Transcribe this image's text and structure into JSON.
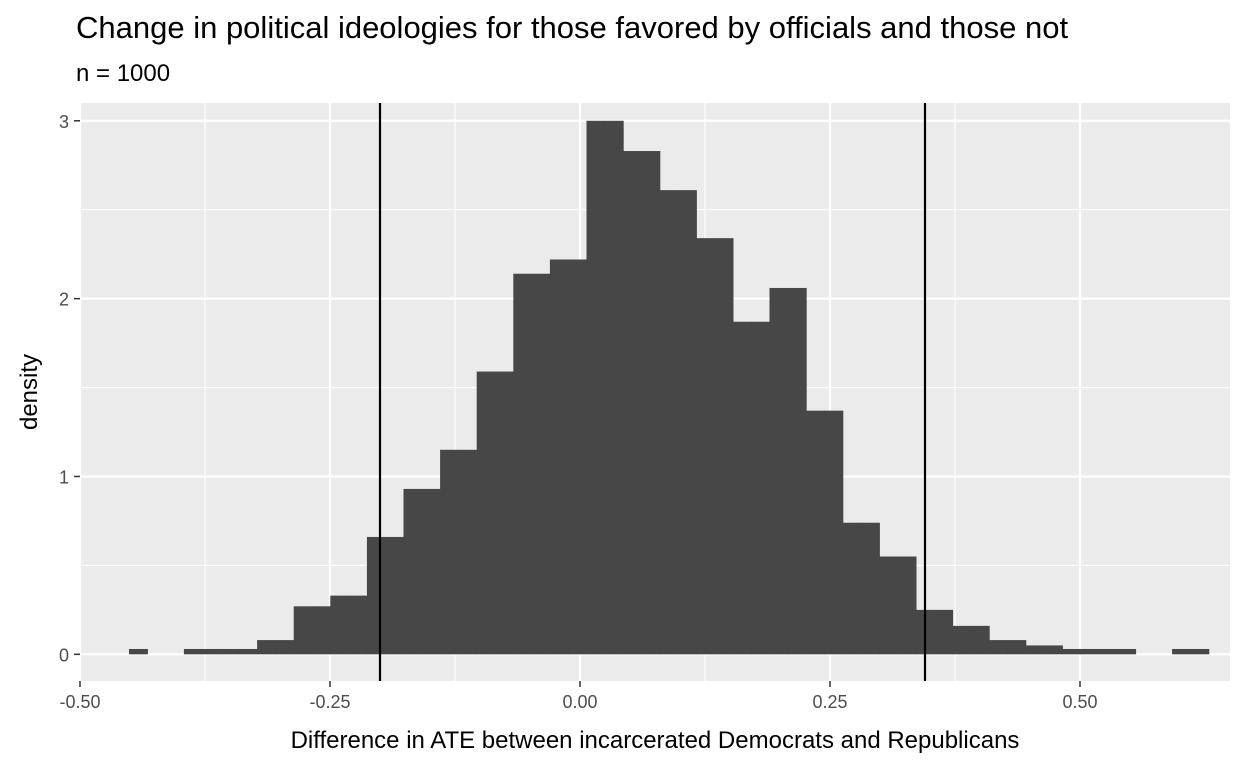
{
  "chart_data": {
    "type": "bar",
    "title": "Change in political ideologies for those favored by officials and those not",
    "subtitle": "n = 1000",
    "xlabel": "Difference in ATE between incarcerated Democrats and Republicans",
    "ylabel": "density",
    "xlim": [
      -0.5,
      0.65
    ],
    "ylim": [
      -0.15,
      3.1
    ],
    "x_ticks": [
      -0.5,
      -0.25,
      0.0,
      0.25,
      0.5
    ],
    "x_tick_labels": [
      "-0.50",
      "-0.25",
      "0.00",
      "0.25",
      "0.50"
    ],
    "y_ticks": [
      0,
      1,
      2,
      3
    ],
    "y_tick_labels": [
      "0",
      "1",
      "2",
      "3"
    ],
    "grid": true,
    "background": "#ebebeb",
    "bar_color": "#474747",
    "bins": [
      {
        "x0": -0.451,
        "x1": -0.4327,
        "density": 0.03
      },
      {
        "x0": -0.4327,
        "x1": -0.4144,
        "density": 0
      },
      {
        "x0": -0.4144,
        "x1": -0.3961,
        "density": 0
      },
      {
        "x0": -0.3961,
        "x1": -0.3778,
        "density": 0.03
      },
      {
        "x0": -0.3778,
        "x1": -0.3595,
        "density": 0.03
      },
      {
        "x0": -0.3595,
        "x1": -0.3412,
        "density": 0.03
      },
      {
        "x0": -0.3412,
        "x1": -0.3229,
        "density": 0.03
      },
      {
        "x0": -0.3229,
        "x1": -0.3046,
        "density": 0.08
      },
      {
        "x0": -0.3046,
        "x1": -0.2863,
        "density": 0.08
      },
      {
        "x0": -0.2863,
        "x1": -0.268,
        "density": 0.27
      },
      {
        "x0": -0.268,
        "x1": -0.2497,
        "density": 0.27
      },
      {
        "x0": -0.2497,
        "x1": -0.2314,
        "density": 0.33
      },
      {
        "x0": -0.2314,
        "x1": -0.2131,
        "density": 0.33
      },
      {
        "x0": -0.2131,
        "x1": -0.1948,
        "density": 0.66
      },
      {
        "x0": -0.1948,
        "x1": -0.1765,
        "density": 0.66
      },
      {
        "x0": -0.1765,
        "x1": -0.1582,
        "density": 0.93
      },
      {
        "x0": -0.1582,
        "x1": -0.1399,
        "density": 0.93
      },
      {
        "x0": -0.1399,
        "x1": -0.1216,
        "density": 1.15
      },
      {
        "x0": -0.1216,
        "x1": -0.1033,
        "density": 1.15
      },
      {
        "x0": -0.1033,
        "x1": -0.085,
        "density": 1.59
      },
      {
        "x0": -0.085,
        "x1": -0.0667,
        "density": 1.59
      },
      {
        "x0": -0.0667,
        "x1": -0.0484,
        "density": 2.14
      },
      {
        "x0": -0.0484,
        "x1": -0.0301,
        "density": 2.14
      },
      {
        "x0": -0.0301,
        "x1": -0.0118,
        "density": 2.22
      },
      {
        "x0": -0.0118,
        "x1": 0.0065,
        "density": 2.22
      },
      {
        "x0": 0.0065,
        "x1": 0.0248,
        "density": 3.0
      },
      {
        "x0": 0.0248,
        "x1": 0.0431,
        "density": 3.0
      },
      {
        "x0": 0.0431,
        "x1": 0.0614,
        "density": 2.83
      },
      {
        "x0": 0.0614,
        "x1": 0.0797,
        "density": 2.83
      },
      {
        "x0": 0.0797,
        "x1": 0.098,
        "density": 2.61
      },
      {
        "x0": 0.098,
        "x1": 0.1163,
        "density": 2.61
      },
      {
        "x0": 0.1163,
        "x1": 0.1346,
        "density": 2.34
      },
      {
        "x0": 0.1346,
        "x1": 0.1529,
        "density": 2.34
      },
      {
        "x0": 0.1529,
        "x1": 0.1712,
        "density": 1.87
      },
      {
        "x0": 0.1712,
        "x1": 0.1895,
        "density": 1.87
      },
      {
        "x0": 0.1895,
        "x1": 0.2078,
        "density": 2.06
      },
      {
        "x0": 0.2078,
        "x1": 0.2261,
        "density": 2.06
      },
      {
        "x0": 0.2261,
        "x1": 0.2444,
        "density": 1.37
      },
      {
        "x0": 0.2444,
        "x1": 0.2627,
        "density": 1.37
      },
      {
        "x0": 0.2627,
        "x1": 0.281,
        "density": 0.74
      },
      {
        "x0": 0.281,
        "x1": 0.2993,
        "density": 0.74
      },
      {
        "x0": 0.2993,
        "x1": 0.3176,
        "density": 0.55
      },
      {
        "x0": 0.3176,
        "x1": 0.3359,
        "density": 0.55
      },
      {
        "x0": 0.3359,
        "x1": 0.3542,
        "density": 0.25
      },
      {
        "x0": 0.3542,
        "x1": 0.3725,
        "density": 0.25
      },
      {
        "x0": 0.3725,
        "x1": 0.3908,
        "density": 0.16
      },
      {
        "x0": 0.3908,
        "x1": 0.4091,
        "density": 0.16
      },
      {
        "x0": 0.4091,
        "x1": 0.4274,
        "density": 0.08
      },
      {
        "x0": 0.4274,
        "x1": 0.4457,
        "density": 0.08
      },
      {
        "x0": 0.4457,
        "x1": 0.464,
        "density": 0.05
      },
      {
        "x0": 0.464,
        "x1": 0.4823,
        "density": 0.05
      },
      {
        "x0": 0.4823,
        "x1": 0.5006,
        "density": 0.03
      },
      {
        "x0": 0.5006,
        "x1": 0.5189,
        "density": 0.03
      },
      {
        "x0": 0.5189,
        "x1": 0.5372,
        "density": 0.03
      },
      {
        "x0": 0.5372,
        "x1": 0.5555,
        "density": 0.03
      },
      {
        "x0": 0.5555,
        "x1": 0.5738,
        "density": 0
      },
      {
        "x0": 0.5738,
        "x1": 0.5921,
        "density": 0
      },
      {
        "x0": 0.5921,
        "x1": 0.6104,
        "density": 0.03
      },
      {
        "x0": 0.6104,
        "x1": 0.6287,
        "density": 0.03
      }
    ],
    "vlines": [
      -0.2,
      0.345
    ]
  }
}
